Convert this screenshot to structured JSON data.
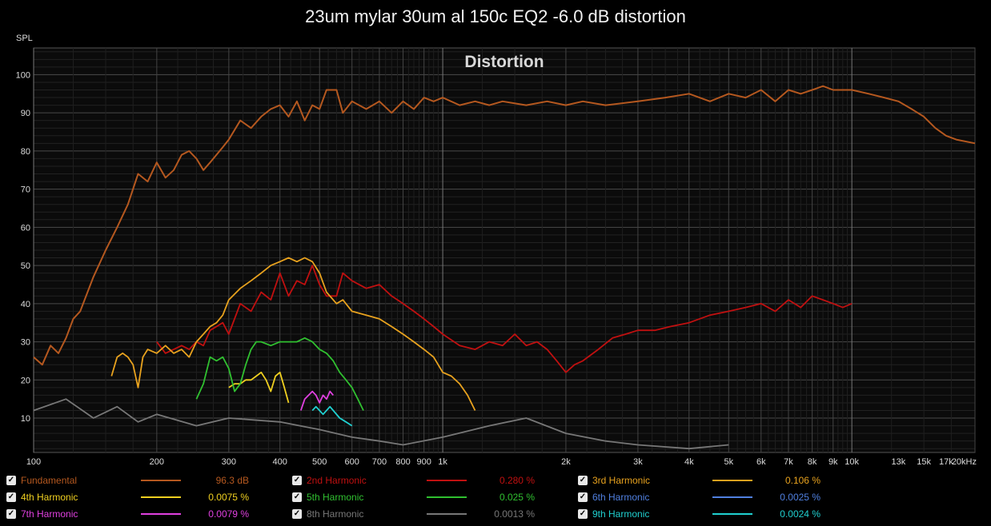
{
  "window": {
    "title": "23um mylar 30um al 150c EQ2 -6.0 dB distortion"
  },
  "chart_data": {
    "type": "line",
    "title": "23um mylar 30um al 150c EQ2 -6.0 dB distortion",
    "subtitle": "Distortion",
    "ylabel": "SPL",
    "xlabel": "",
    "xscale": "log",
    "xlim": [
      100,
      20000
    ],
    "ylim": [
      1,
      107
    ],
    "grid": true,
    "legend_position": "bottom",
    "y_ticks": [
      10,
      20,
      30,
      40,
      50,
      60,
      70,
      80,
      90,
      100
    ],
    "x_ticks": [
      {
        "v": 100,
        "label": "100"
      },
      {
        "v": 200,
        "label": "200"
      },
      {
        "v": 300,
        "label": "300"
      },
      {
        "v": 400,
        "label": "400"
      },
      {
        "v": 500,
        "label": "500"
      },
      {
        "v": 600,
        "label": "600"
      },
      {
        "v": 700,
        "label": "700"
      },
      {
        "v": 800,
        "label": "800"
      },
      {
        "v": 900,
        "label": "900"
      },
      {
        "v": 1000,
        "label": "1k"
      },
      {
        "v": 2000,
        "label": "2k"
      },
      {
        "v": 3000,
        "label": "3k"
      },
      {
        "v": 4000,
        "label": "4k"
      },
      {
        "v": 5000,
        "label": "5k"
      },
      {
        "v": 6000,
        "label": "6k"
      },
      {
        "v": 7000,
        "label": "7k"
      },
      {
        "v": 8000,
        "label": "8k"
      },
      {
        "v": 9000,
        "label": "9k"
      },
      {
        "v": 10000,
        "label": "10k"
      },
      {
        "v": 13000,
        "label": "13k"
      },
      {
        "v": 15000,
        "label": "15k"
      },
      {
        "v": 17000,
        "label": "17k"
      },
      {
        "v": 20000,
        "label": "20kHz"
      }
    ],
    "series": [
      {
        "name": "Fundamental",
        "value_label": "96.3 dB",
        "color": "#b5581f",
        "x": [
          100,
          105,
          110,
          115,
          120,
          125,
          130,
          140,
          150,
          160,
          170,
          180,
          190,
          200,
          210,
          220,
          230,
          240,
          250,
          260,
          270,
          290,
          300,
          320,
          340,
          360,
          380,
          400,
          420,
          440,
          460,
          480,
          500,
          520,
          550,
          570,
          600,
          650,
          700,
          750,
          800,
          850,
          900,
          950,
          1000,
          1100,
          1200,
          1300,
          1400,
          1600,
          1800,
          2000,
          2200,
          2500,
          3000,
          3500,
          4000,
          4500,
          5000,
          5500,
          6000,
          6500,
          7000,
          7500,
          8000,
          8500,
          9000,
          10000,
          11000,
          12000,
          13000,
          14000,
          15000,
          16000,
          17000,
          18000,
          20000
        ],
        "y": [
          26,
          24,
          29,
          27,
          31,
          36,
          38,
          47,
          54,
          60,
          66,
          74,
          72,
          77,
          73,
          75,
          79,
          80,
          78,
          75,
          77,
          81,
          83,
          88,
          86,
          89,
          91,
          92,
          89,
          93,
          88,
          92,
          91,
          96,
          96,
          90,
          93,
          91,
          93,
          90,
          93,
          91,
          94,
          93,
          94,
          92,
          93,
          92,
          93,
          92,
          93,
          92,
          93,
          92,
          93,
          94,
          95,
          93,
          95,
          94,
          96,
          93,
          96,
          95,
          96,
          97,
          96,
          96,
          95,
          94,
          93,
          91,
          89,
          86,
          84,
          83,
          82
        ]
      },
      {
        "name": "2nd Harmonic",
        "value_label": "0.280 %",
        "color": "#c01010",
        "x": [
          200,
          210,
          220,
          230,
          240,
          250,
          260,
          270,
          280,
          290,
          300,
          320,
          340,
          360,
          380,
          400,
          420,
          440,
          460,
          480,
          500,
          520,
          550,
          570,
          600,
          650,
          700,
          750,
          800,
          850,
          900,
          950,
          1000,
          1100,
          1200,
          1300,
          1400,
          1500,
          1600,
          1700,
          1800,
          1900,
          2000,
          2100,
          2200,
          2400,
          2600,
          2800,
          3000,
          3300,
          3600,
          4000,
          4500,
          5000,
          5500,
          6000,
          6500,
          7000,
          7500,
          8000,
          8500,
          9000,
          9500,
          10000
        ],
        "y": [
          30,
          27,
          28,
          29,
          28,
          30,
          29,
          33,
          34,
          35,
          32,
          40,
          38,
          43,
          41,
          48,
          42,
          46,
          45,
          50,
          45,
          42,
          42,
          48,
          46,
          44,
          45,
          42,
          40,
          38,
          36,
          34,
          32,
          29,
          28,
          30,
          29,
          32,
          29,
          30,
          28,
          25,
          22,
          24,
          25,
          28,
          31,
          32,
          33,
          33,
          34,
          35,
          37,
          38,
          39,
          40,
          38,
          41,
          39,
          42,
          41,
          40,
          39,
          40
        ]
      },
      {
        "name": "3rd Harmonic",
        "value_label": "0.106 %",
        "color": "#e8a21e",
        "x": [
          155,
          160,
          165,
          170,
          175,
          180,
          185,
          190,
          200,
          210,
          220,
          230,
          240,
          250,
          260,
          270,
          280,
          290,
          300,
          320,
          340,
          360,
          380,
          400,
          420,
          440,
          460,
          480,
          500,
          520,
          550,
          570,
          600,
          650,
          700,
          750,
          800,
          850,
          900,
          950,
          1000,
          1050,
          1100,
          1150,
          1200
        ],
        "y": [
          21,
          26,
          27,
          26,
          24,
          18,
          26,
          28,
          27,
          29,
          27,
          28,
          26,
          30,
          32,
          34,
          35,
          37,
          41,
          44,
          46,
          48,
          50,
          51,
          52,
          51,
          52,
          51,
          48,
          43,
          40,
          41,
          38,
          37,
          36,
          34,
          32,
          30,
          28,
          26,
          22,
          21,
          19,
          16,
          12
        ]
      },
      {
        "name": "4th Harmonic",
        "value_label": "0.0075 %",
        "color": "#f0d020",
        "x": [
          300,
          310,
          320,
          330,
          340,
          350,
          360,
          370,
          380,
          390,
          400,
          410,
          420
        ],
        "y": [
          18,
          19,
          19,
          20,
          20,
          21,
          22,
          20,
          17,
          21,
          22,
          18,
          14
        ]
      },
      {
        "name": "5th Harmonic",
        "value_label": "0.025 %",
        "color": "#30c030",
        "x": [
          250,
          260,
          270,
          280,
          290,
          300,
          310,
          320,
          330,
          340,
          350,
          360,
          380,
          400,
          420,
          440,
          460,
          480,
          500,
          520,
          540,
          560,
          580,
          600,
          620,
          640
        ],
        "y": [
          15,
          19,
          26,
          25,
          26,
          23,
          17,
          19,
          24,
          28,
          30,
          30,
          29,
          30,
          30,
          30,
          31,
          30,
          28,
          27,
          25,
          22,
          20,
          18,
          15,
          12
        ]
      },
      {
        "name": "6th Harmonic",
        "value_label": "0.0025 %",
        "color": "#5080e0",
        "x": [],
        "y": []
      },
      {
        "name": "7th Harmonic",
        "value_label": "0.0079 %",
        "color": "#e040e0",
        "x": [
          450,
          460,
          470,
          480,
          490,
          500,
          510,
          520,
          530,
          540
        ],
        "y": [
          12,
          15,
          16,
          17,
          16,
          14,
          16,
          15,
          17,
          16
        ]
      },
      {
        "name": "8th Harmonic",
        "value_label": "0.0013 %",
        "color": "#777777",
        "x": [
          100,
          120,
          140,
          160,
          180,
          200,
          250,
          300,
          400,
          500,
          600,
          700,
          800,
          1000,
          1300,
          1600,
          2000,
          2500,
          3000,
          4000,
          5000
        ],
        "y": [
          12,
          15,
          10,
          13,
          9,
          11,
          8,
          10,
          9,
          7,
          5,
          4,
          3,
          5,
          8,
          10,
          6,
          4,
          3,
          2,
          3
        ]
      },
      {
        "name": "9th Harmonic",
        "value_label": "0.0024 %",
        "color": "#20d0d0",
        "x": [
          480,
          490,
          500,
          510,
          520,
          530,
          540,
          560,
          580,
          600
        ],
        "y": [
          12,
          13,
          12,
          11,
          12,
          13,
          12,
          10,
          9,
          8
        ]
      }
    ]
  }
}
